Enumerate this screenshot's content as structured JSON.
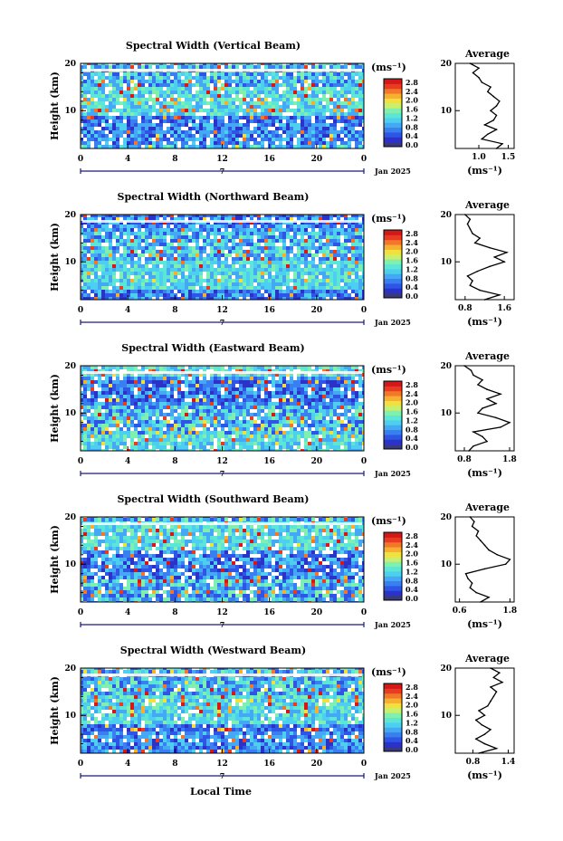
{
  "figure": {
    "xlabel": "Local Time",
    "date_label": "Jan 2025",
    "day_marker": "7"
  },
  "colorbar": {
    "unit_label": "(ms⁻¹)",
    "tick_labels": [
      "2.8",
      "2.4",
      "2.0",
      "1.6",
      "1.2",
      "0.8",
      "0.4",
      "0.0"
    ],
    "colors": [
      "#3a3a78",
      "#2a32c8",
      "#2f55e6",
      "#3a7ff0",
      "#45a8f5",
      "#4fcff0",
      "#5ce6d8",
      "#80f0b0",
      "#c8f070",
      "#f0e040",
      "#f5b030",
      "#f07828",
      "#e83c20",
      "#d41818"
    ]
  },
  "chart_data": [
    {
      "type": "heatmap",
      "title": "Spectral Width (Vertical Beam)",
      "ylabel": "Height (km)",
      "xlim": [
        0,
        24
      ],
      "x_ticks": [
        "0",
        "4",
        "8",
        "12",
        "16",
        "20",
        "0"
      ],
      "ylim": [
        2,
        20
      ],
      "y_ticks": [
        "10",
        "20"
      ],
      "value_range": [
        0.0,
        2.8
      ],
      "profile": {
        "title": "Average",
        "xlabel": "(ms⁻¹)",
        "xlim": [
          0.6,
          1.6
        ],
        "x_ticks": [
          "1.0",
          "1.5"
        ],
        "y_ticks": [
          "10",
          "20"
        ],
        "heights": [
          2,
          3,
          4,
          5,
          6,
          7,
          8,
          9,
          10,
          11,
          12,
          13,
          14,
          15,
          16,
          17,
          18,
          19,
          20
        ],
        "values": [
          1.3,
          1.4,
          1.05,
          1.15,
          1.3,
          1.1,
          1.25,
          1.3,
          1.2,
          1.3,
          1.35,
          1.25,
          1.15,
          1.2,
          1.05,
          1.0,
          0.9,
          1.0,
          0.85
        ]
      }
    },
    {
      "type": "heatmap",
      "title": "Spectral Width (Northward Beam)",
      "ylabel": "Height (km)",
      "xlim": [
        0,
        24
      ],
      "x_ticks": [
        "0",
        "4",
        "8",
        "12",
        "16",
        "20",
        "0"
      ],
      "ylim": [
        2,
        20
      ],
      "y_ticks": [
        "10",
        "20"
      ],
      "value_range": [
        0.0,
        2.8
      ],
      "profile": {
        "title": "Average",
        "xlabel": "(ms⁻¹)",
        "xlim": [
          0.6,
          1.8
        ],
        "x_ticks": [
          "0.8",
          "1.6"
        ],
        "y_ticks": [
          "10",
          "20"
        ],
        "heights": [
          2,
          3,
          4,
          5,
          6,
          7,
          8,
          9,
          10,
          11,
          12,
          13,
          14,
          15,
          16,
          17,
          18,
          19,
          20
        ],
        "values": [
          1.2,
          1.5,
          1.1,
          0.9,
          0.95,
          0.85,
          1.05,
          1.3,
          1.6,
          1.4,
          1.65,
          1.3,
          1.0,
          1.1,
          0.95,
          0.9,
          0.85,
          0.9,
          0.8
        ]
      }
    },
    {
      "type": "heatmap",
      "title": "Spectral Width (Eastward Beam)",
      "ylabel": "Height (km)",
      "xlim": [
        0,
        24
      ],
      "x_ticks": [
        "0",
        "4",
        "8",
        "12",
        "16",
        "20",
        "0"
      ],
      "ylim": [
        2,
        20
      ],
      "y_ticks": [
        "10",
        "20"
      ],
      "value_range": [
        0.0,
        2.8
      ],
      "profile": {
        "title": "Average",
        "xlabel": "(ms⁻¹)",
        "xlim": [
          0.6,
          1.9
        ],
        "x_ticks": [
          "0.8",
          "1.8"
        ],
        "y_ticks": [
          "10",
          "20"
        ],
        "heights": [
          2,
          3,
          4,
          5,
          6,
          7,
          8,
          9,
          10,
          11,
          12,
          13,
          14,
          15,
          16,
          17,
          18,
          19,
          20
        ],
        "values": [
          0.9,
          1.0,
          1.3,
          1.2,
          1.0,
          1.6,
          1.8,
          1.5,
          1.1,
          1.2,
          1.5,
          1.3,
          1.6,
          1.3,
          1.1,
          1.2,
          1.0,
          0.95,
          0.8
        ]
      }
    },
    {
      "type": "heatmap",
      "title": "Spectral Width (Southward Beam)",
      "ylabel": "Height (km)",
      "xlim": [
        0,
        24
      ],
      "x_ticks": [
        "0",
        "4",
        "8",
        "12",
        "16",
        "20",
        "0"
      ],
      "ylim": [
        2,
        20
      ],
      "y_ticks": [
        "10",
        "20"
      ],
      "value_range": [
        0.0,
        2.8
      ],
      "profile": {
        "title": "Average",
        "xlabel": "(ms⁻¹)",
        "xlim": [
          0.5,
          1.9
        ],
        "x_ticks": [
          "0.6",
          "1.8"
        ],
        "y_ticks": [
          "10",
          "20"
        ],
        "heights": [
          2,
          3,
          4,
          5,
          6,
          7,
          8,
          9,
          10,
          11,
          12,
          13,
          14,
          15,
          16,
          17,
          18,
          19,
          20
        ],
        "values": [
          1.1,
          1.3,
          1.0,
          0.85,
          0.9,
          0.8,
          0.75,
          1.2,
          1.7,
          1.8,
          1.5,
          1.3,
          1.2,
          1.1,
          1.0,
          1.05,
          0.9,
          0.95,
          0.85
        ]
      }
    },
    {
      "type": "heatmap",
      "title": "Spectral Width (Westward Beam)",
      "ylabel": "Height (km)",
      "xlim": [
        0,
        24
      ],
      "x_ticks": [
        "0",
        "4",
        "8",
        "12",
        "16",
        "20",
        "0"
      ],
      "ylim": [
        2,
        20
      ],
      "y_ticks": [
        "10",
        "20"
      ],
      "value_range": [
        0.0,
        2.8
      ],
      "profile": {
        "title": "Average",
        "xlabel": "(ms⁻¹)",
        "xlim": [
          0.5,
          1.5
        ],
        "x_ticks": [
          "0.8",
          "1.4"
        ],
        "y_ticks": [
          "10",
          "20"
        ],
        "heights": [
          2,
          3,
          4,
          5,
          6,
          7,
          8,
          9,
          10,
          11,
          12,
          13,
          14,
          15,
          16,
          17,
          18,
          19,
          20
        ],
        "values": [
          0.9,
          1.2,
          1.0,
          0.85,
          1.0,
          1.1,
          0.95,
          0.85,
          1.0,
          0.9,
          1.05,
          1.1,
          1.15,
          1.2,
          1.1,
          1.3,
          1.15,
          1.25,
          1.1
        ]
      }
    }
  ]
}
